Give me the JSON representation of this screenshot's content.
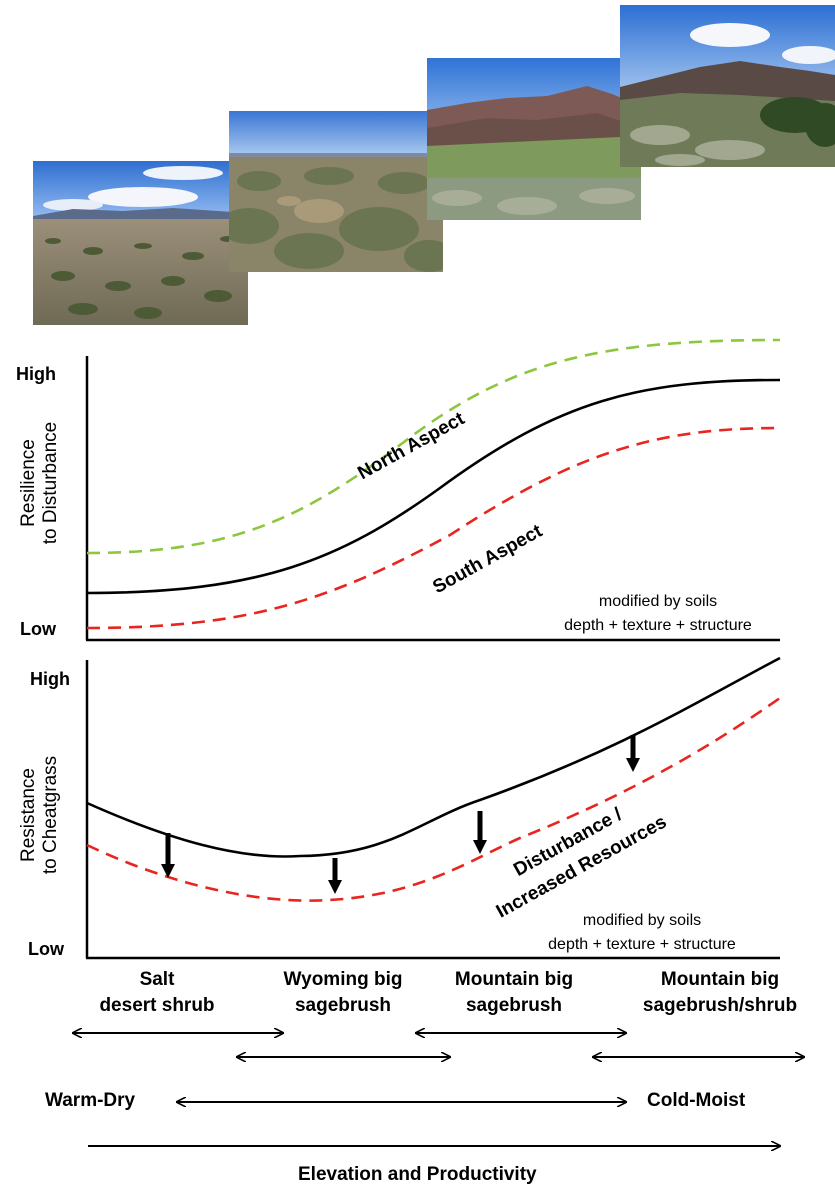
{
  "photos": [
    {
      "name": "salt-desert-shrub-photo"
    },
    {
      "name": "wyoming-big-sagebrush-photo"
    },
    {
      "name": "mountain-big-sagebrush-photo"
    },
    {
      "name": "mountain-big-sagebrush-shrub-photo"
    }
  ],
  "resilience_panel": {
    "y_high": "High",
    "y_low": "Low",
    "y_title_line1": "Resilience",
    "y_title_line2": "to Disturbance",
    "north_label": "North Aspect",
    "south_label": "South Aspect",
    "note_line1": "modified by soils",
    "note_line2": "depth + texture + structure",
    "colors": {
      "north": "#8dc63f",
      "middle": "#000000",
      "south": "#e8251f"
    }
  },
  "resistance_panel": {
    "y_high": "High",
    "y_low": "Low",
    "y_title_line1": "Resistance",
    "y_title_line2": "to Cheatgrass",
    "curve_label_line1": "Disturbance /",
    "curve_label_line2": "Increased Resources",
    "note_line1": "modified by soils",
    "note_line2": "depth + texture + structure",
    "colors": {
      "baseline": "#000000",
      "disturbed": "#e8251f"
    }
  },
  "vegetation_types": [
    {
      "line1": "Salt",
      "line2": "desert shrub"
    },
    {
      "line1": "Wyoming big",
      "line2": "sagebrush"
    },
    {
      "line1": "Mountain big",
      "line2": "sagebrush"
    },
    {
      "line1": "Mountain big",
      "line2": "sagebrush/shrub"
    }
  ],
  "gradient": {
    "warm_dry": "Warm-Dry",
    "cold_moist": "Cold-Moist",
    "axis_title": "Elevation and Productivity"
  }
}
